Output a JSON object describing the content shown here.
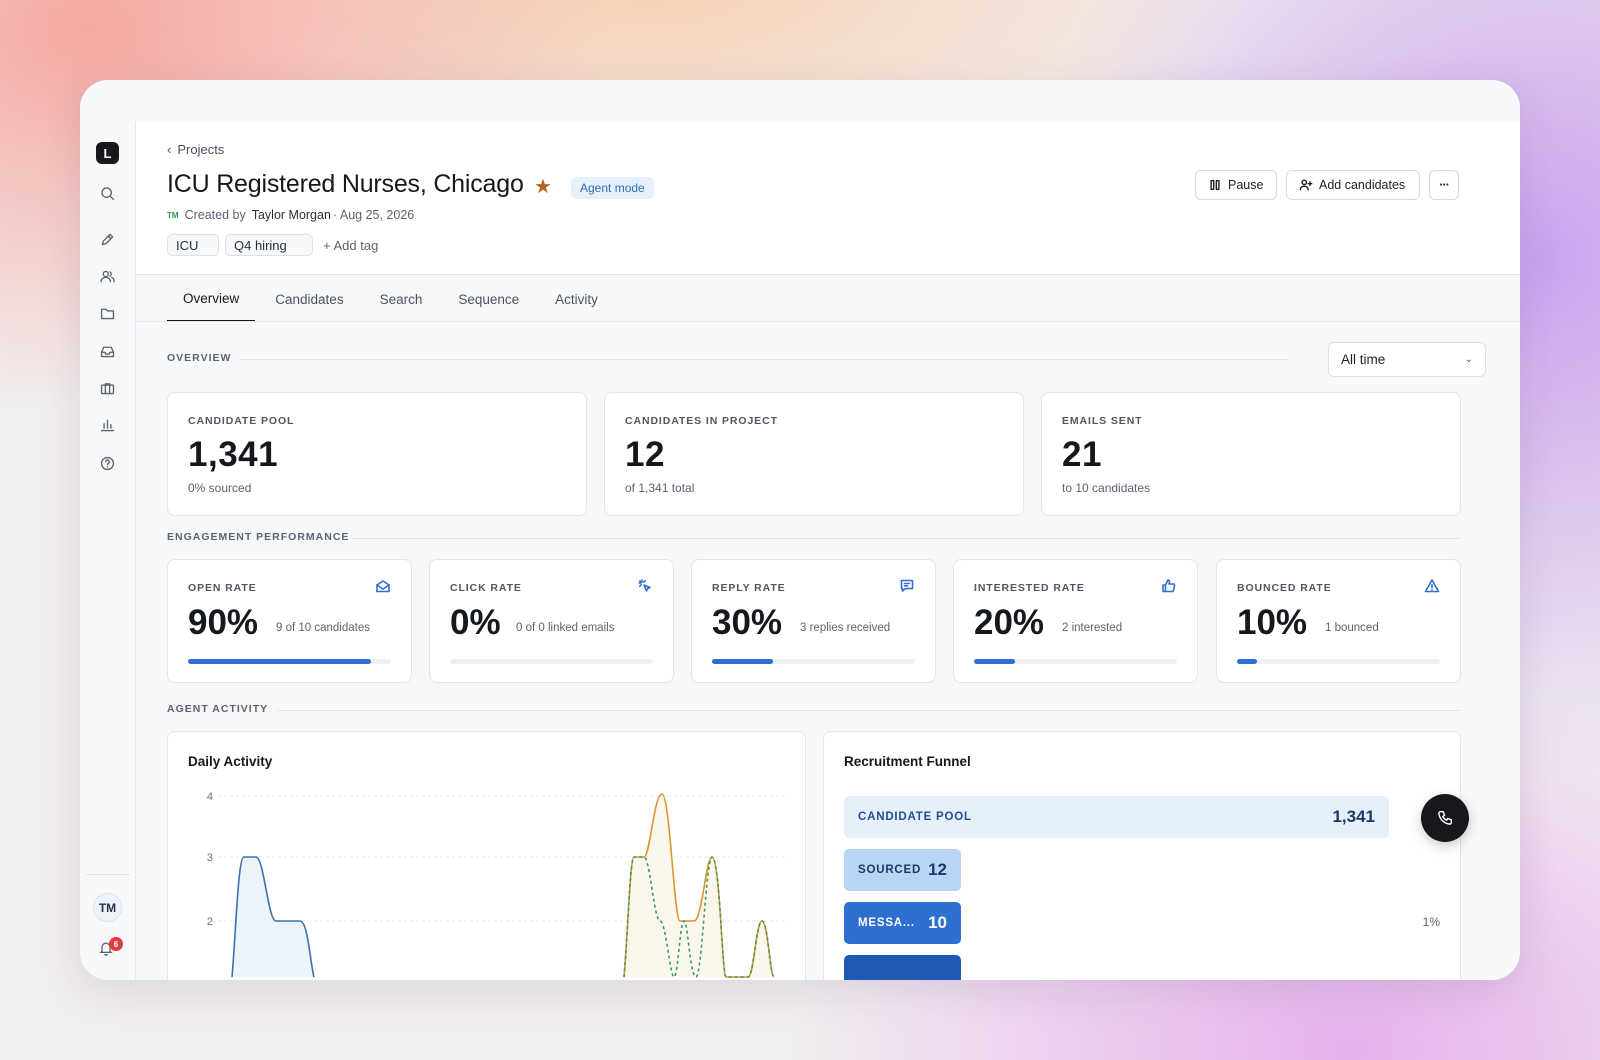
{
  "sidebar": {
    "logo": "L",
    "icons": [
      "search-icon",
      "pen-icon",
      "users-icon",
      "folder-icon",
      "inbox-icon",
      "briefcase-icon",
      "chart-icon",
      "help-icon"
    ],
    "avatar": "TM",
    "notifications": "6"
  },
  "header": {
    "breadcrumb": "Projects",
    "title": "ICU Registered Nurses, Chicago",
    "badge": "Agent mode",
    "meta_avatar": "TM",
    "created_by_prefix": "Created by",
    "creator": "Taylor Morgan",
    "created_date": "· Aug 25, 2026",
    "tags": [
      "ICU",
      "Q4 hiring"
    ],
    "add_tag": "+ Add tag",
    "pause_label": "Pause",
    "add_candidates_label": "Add candidates",
    "more_label": "···"
  },
  "tabs": [
    "Overview",
    "Candidates",
    "Search",
    "Sequence",
    "Activity"
  ],
  "overview": {
    "section_label": "OVERVIEW",
    "filter": "All time",
    "cards": [
      {
        "label": "CANDIDATE POOL",
        "value": "1,341",
        "sub": "0% sourced"
      },
      {
        "label": "CANDIDATES IN PROJECT",
        "value": "12",
        "sub": "of 1,341 total"
      },
      {
        "label": "EMAILS SENT",
        "value": "21",
        "sub": "to 10 candidates"
      }
    ]
  },
  "engagement": {
    "section_label": "ENGAGEMENT PERFORMANCE",
    "rates": [
      {
        "label": "OPEN RATE",
        "value": "90%",
        "sub": "9 of 10 candidates",
        "fill": 0.9,
        "icon": "mail-open-icon"
      },
      {
        "label": "CLICK RATE",
        "value": "0%",
        "sub": "0 of 0 linked emails",
        "fill": 0.0,
        "icon": "cursor-click-icon"
      },
      {
        "label": "REPLY RATE",
        "value": "30%",
        "sub": "3 replies received",
        "fill": 0.3,
        "icon": "message-icon"
      },
      {
        "label": "INTERESTED RATE",
        "value": "20%",
        "sub": "2 interested",
        "fill": 0.2,
        "icon": "thumbs-up-icon"
      },
      {
        "label": "BOUNCED RATE",
        "value": "10%",
        "sub": "1 bounced",
        "fill": 0.1,
        "icon": "warning-icon"
      }
    ]
  },
  "agent_activity": {
    "section_label": "AGENT ACTIVITY",
    "daily_title": "Daily Activity",
    "y_ticks": [
      "4",
      "3",
      "2"
    ],
    "funnel_title": "Recruitment Funnel",
    "funnel": [
      {
        "label": "CANDIDATE POOL",
        "value": "1,341",
        "fraction": 1.0
      },
      {
        "label": "SOURCED",
        "value": "12",
        "fraction": 0.215
      },
      {
        "label": "MESSA...",
        "value": "10",
        "fraction": 0.215
      },
      {
        "label": "",
        "value": "",
        "fraction": 0.215
      }
    ],
    "funnel_pct": "1%"
  },
  "colors": {
    "accent": "#2f6fd0",
    "funnel_1": "#e6f0fb",
    "funnel_2": "#b9d4f5",
    "funnel_3": "#2f6fd0",
    "funnel_4": "#1f58b5",
    "line_blue": "#3d6fb0",
    "line_orange": "#d9962e",
    "line_green": "#3a9a5a"
  }
}
